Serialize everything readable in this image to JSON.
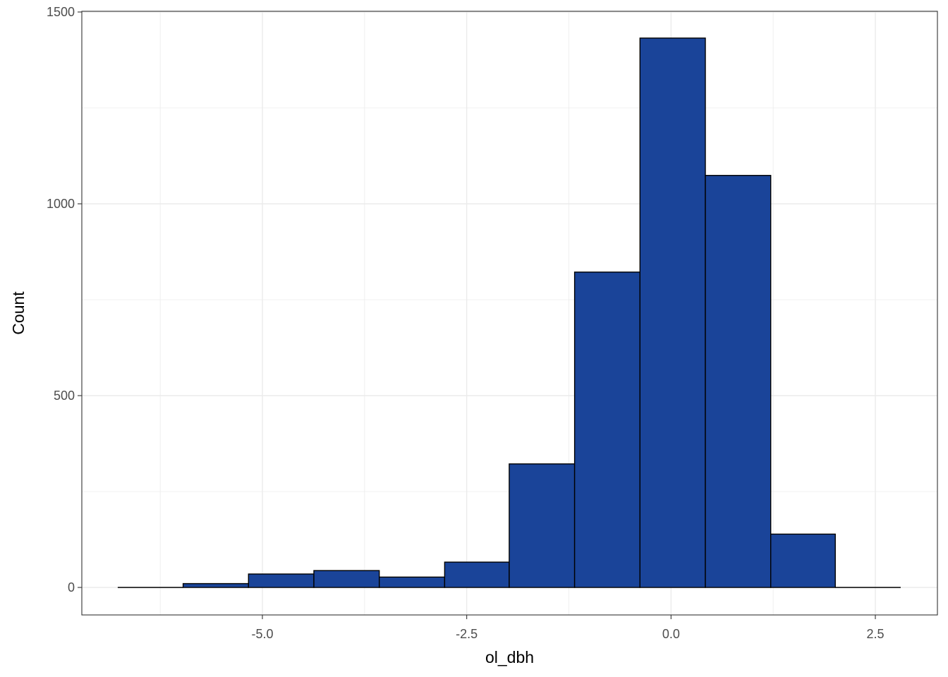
{
  "chart_data": {
    "type": "bar",
    "subtype": "histogram",
    "xlabel": "ol_dbh",
    "ylabel": "Count",
    "xlim": [
      -7.1,
      3.6
    ],
    "ylim": [
      -70,
      1500
    ],
    "x_ticks": [
      {
        "value": -5.0,
        "label": "-5.0"
      },
      {
        "value": -2.5,
        "label": "-2.5"
      },
      {
        "value": 0.0,
        "label": "0.0"
      },
      {
        "value": 2.5,
        "label": "2.5"
      }
    ],
    "y_ticks": [
      {
        "value": 0,
        "label": "0"
      },
      {
        "value": 500,
        "label": "500"
      },
      {
        "value": 1000,
        "label": "1000"
      },
      {
        "value": 1500,
        "label": "1500"
      }
    ],
    "bins": [
      {
        "x0": -6.77,
        "x1": -5.97,
        "count": 0
      },
      {
        "x0": -5.97,
        "x1": -5.17,
        "count": 10
      },
      {
        "x0": -5.17,
        "x1": -4.37,
        "count": 35
      },
      {
        "x0": -4.37,
        "x1": -3.57,
        "count": 44
      },
      {
        "x0": -3.57,
        "x1": -2.77,
        "count": 27
      },
      {
        "x0": -2.77,
        "x1": -1.98,
        "count": 66
      },
      {
        "x0": -1.98,
        "x1": -1.18,
        "count": 322
      },
      {
        "x0": -1.18,
        "x1": -0.38,
        "count": 822
      },
      {
        "x0": -0.38,
        "x1": 0.42,
        "count": 1432
      },
      {
        "x0": 0.42,
        "x1": 1.22,
        "count": 1074
      },
      {
        "x0": 1.22,
        "x1": 2.01,
        "count": 139
      },
      {
        "x0": 2.01,
        "x1": 2.81,
        "count": 0
      }
    ],
    "grid": true,
    "bar_fill": "#1A4499",
    "bar_stroke": "#000000",
    "grid_color": "#EBEBEB",
    "panel_border": "#333333"
  }
}
